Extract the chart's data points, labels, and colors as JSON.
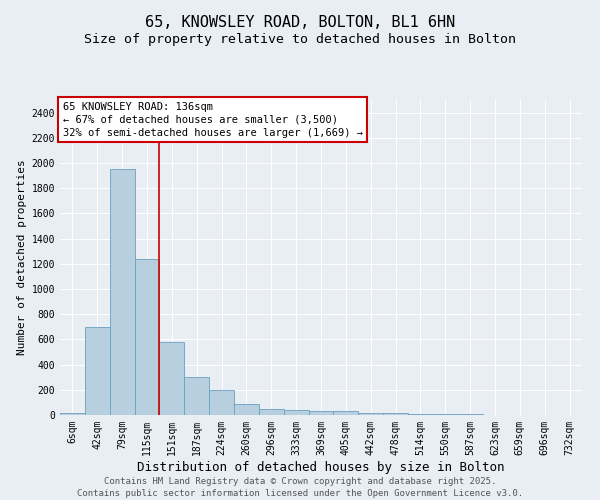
{
  "title1": "65, KNOWSLEY ROAD, BOLTON, BL1 6HN",
  "title2": "Size of property relative to detached houses in Bolton",
  "xlabel": "Distribution of detached houses by size in Bolton",
  "ylabel": "Number of detached properties",
  "categories": [
    "6sqm",
    "42sqm",
    "79sqm",
    "115sqm",
    "151sqm",
    "187sqm",
    "224sqm",
    "260sqm",
    "296sqm",
    "333sqm",
    "369sqm",
    "405sqm",
    "442sqm",
    "478sqm",
    "514sqm",
    "550sqm",
    "587sqm",
    "623sqm",
    "659sqm",
    "696sqm",
    "732sqm"
  ],
  "values": [
    15,
    700,
    1950,
    1240,
    580,
    305,
    200,
    85,
    50,
    40,
    35,
    30,
    15,
    15,
    10,
    5,
    5,
    3,
    2,
    2,
    1
  ],
  "bar_color": "#b8cfe0",
  "bar_edge_color": "#6a9fc0",
  "ylim": [
    0,
    2500
  ],
  "yticks": [
    0,
    200,
    400,
    600,
    800,
    1000,
    1200,
    1400,
    1600,
    1800,
    2000,
    2200,
    2400
  ],
  "vline_x": 3.5,
  "vline_color": "#cc0000",
  "annotation_text": "65 KNOWSLEY ROAD: 136sqm\n← 67% of detached houses are smaller (3,500)\n32% of semi-detached houses are larger (1,669) →",
  "annotation_box_color": "#cc0000",
  "background_color": "#e8eef4",
  "grid_color": "#ffffff",
  "footnote": "Contains HM Land Registry data © Crown copyright and database right 2025.\nContains public sector information licensed under the Open Government Licence v3.0.",
  "title1_fontsize": 11,
  "title2_fontsize": 9.5,
  "xlabel_fontsize": 9,
  "ylabel_fontsize": 8,
  "tick_fontsize": 7,
  "annotation_fontsize": 7.5,
  "footnote_fontsize": 6.5
}
